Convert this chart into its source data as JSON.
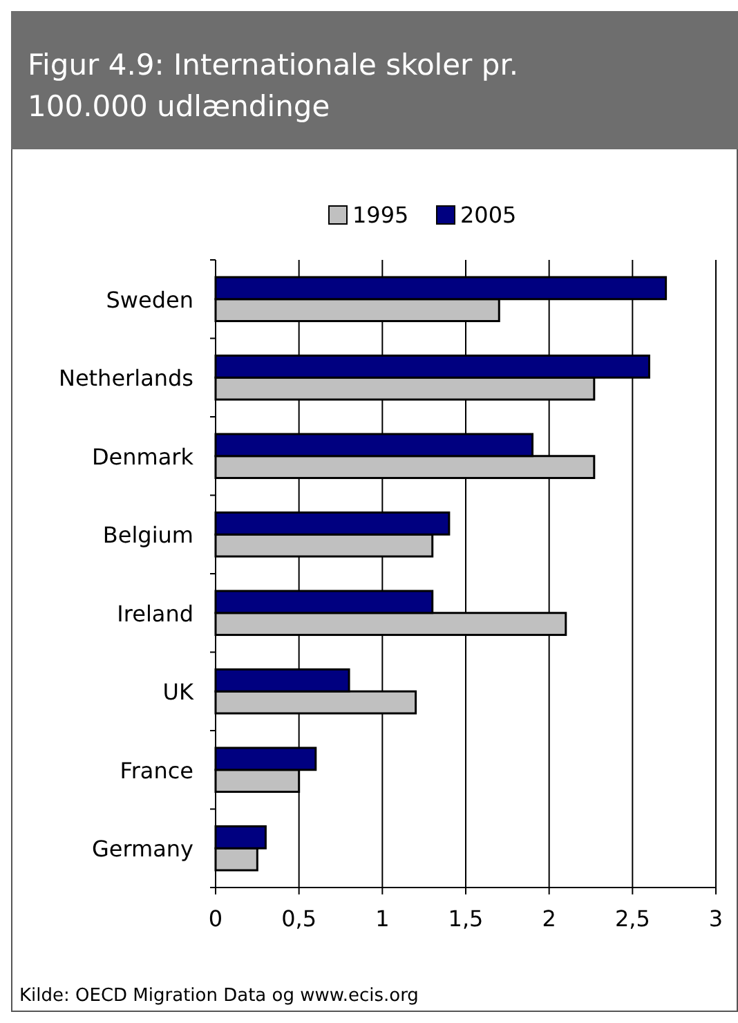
{
  "chart_data": {
    "type": "bar",
    "orientation": "horizontal",
    "title": "Figur 4.9: Internationale skoler pr. 100.000 udlændinge",
    "categories": [
      "Sweden",
      "Netherlands",
      "Denmark",
      "Belgium",
      "Ireland",
      "UK",
      "France",
      "Germany"
    ],
    "series": [
      {
        "name": "1995",
        "color": "#c0c0c0",
        "values": [
          1.7,
          2.27,
          2.27,
          1.3,
          2.1,
          1.2,
          0.5,
          0.25
        ]
      },
      {
        "name": "2005",
        "color": "#000080",
        "values": [
          2.7,
          2.6,
          1.9,
          1.4,
          1.3,
          0.8,
          0.6,
          0.3
        ]
      }
    ],
    "xlim": [
      0,
      3
    ],
    "xticks": [
      0,
      {
        "value": 0.5,
        "label": "0,5"
      },
      1,
      {
        "value": 1.5,
        "label": "1,5"
      },
      2,
      {
        "value": 2.5,
        "label": "2,5"
      },
      3
    ],
    "grid": "x",
    "legend": "top",
    "annotations": [
      "Kilde: OECD Migration Data og www.ecis.org"
    ]
  }
}
